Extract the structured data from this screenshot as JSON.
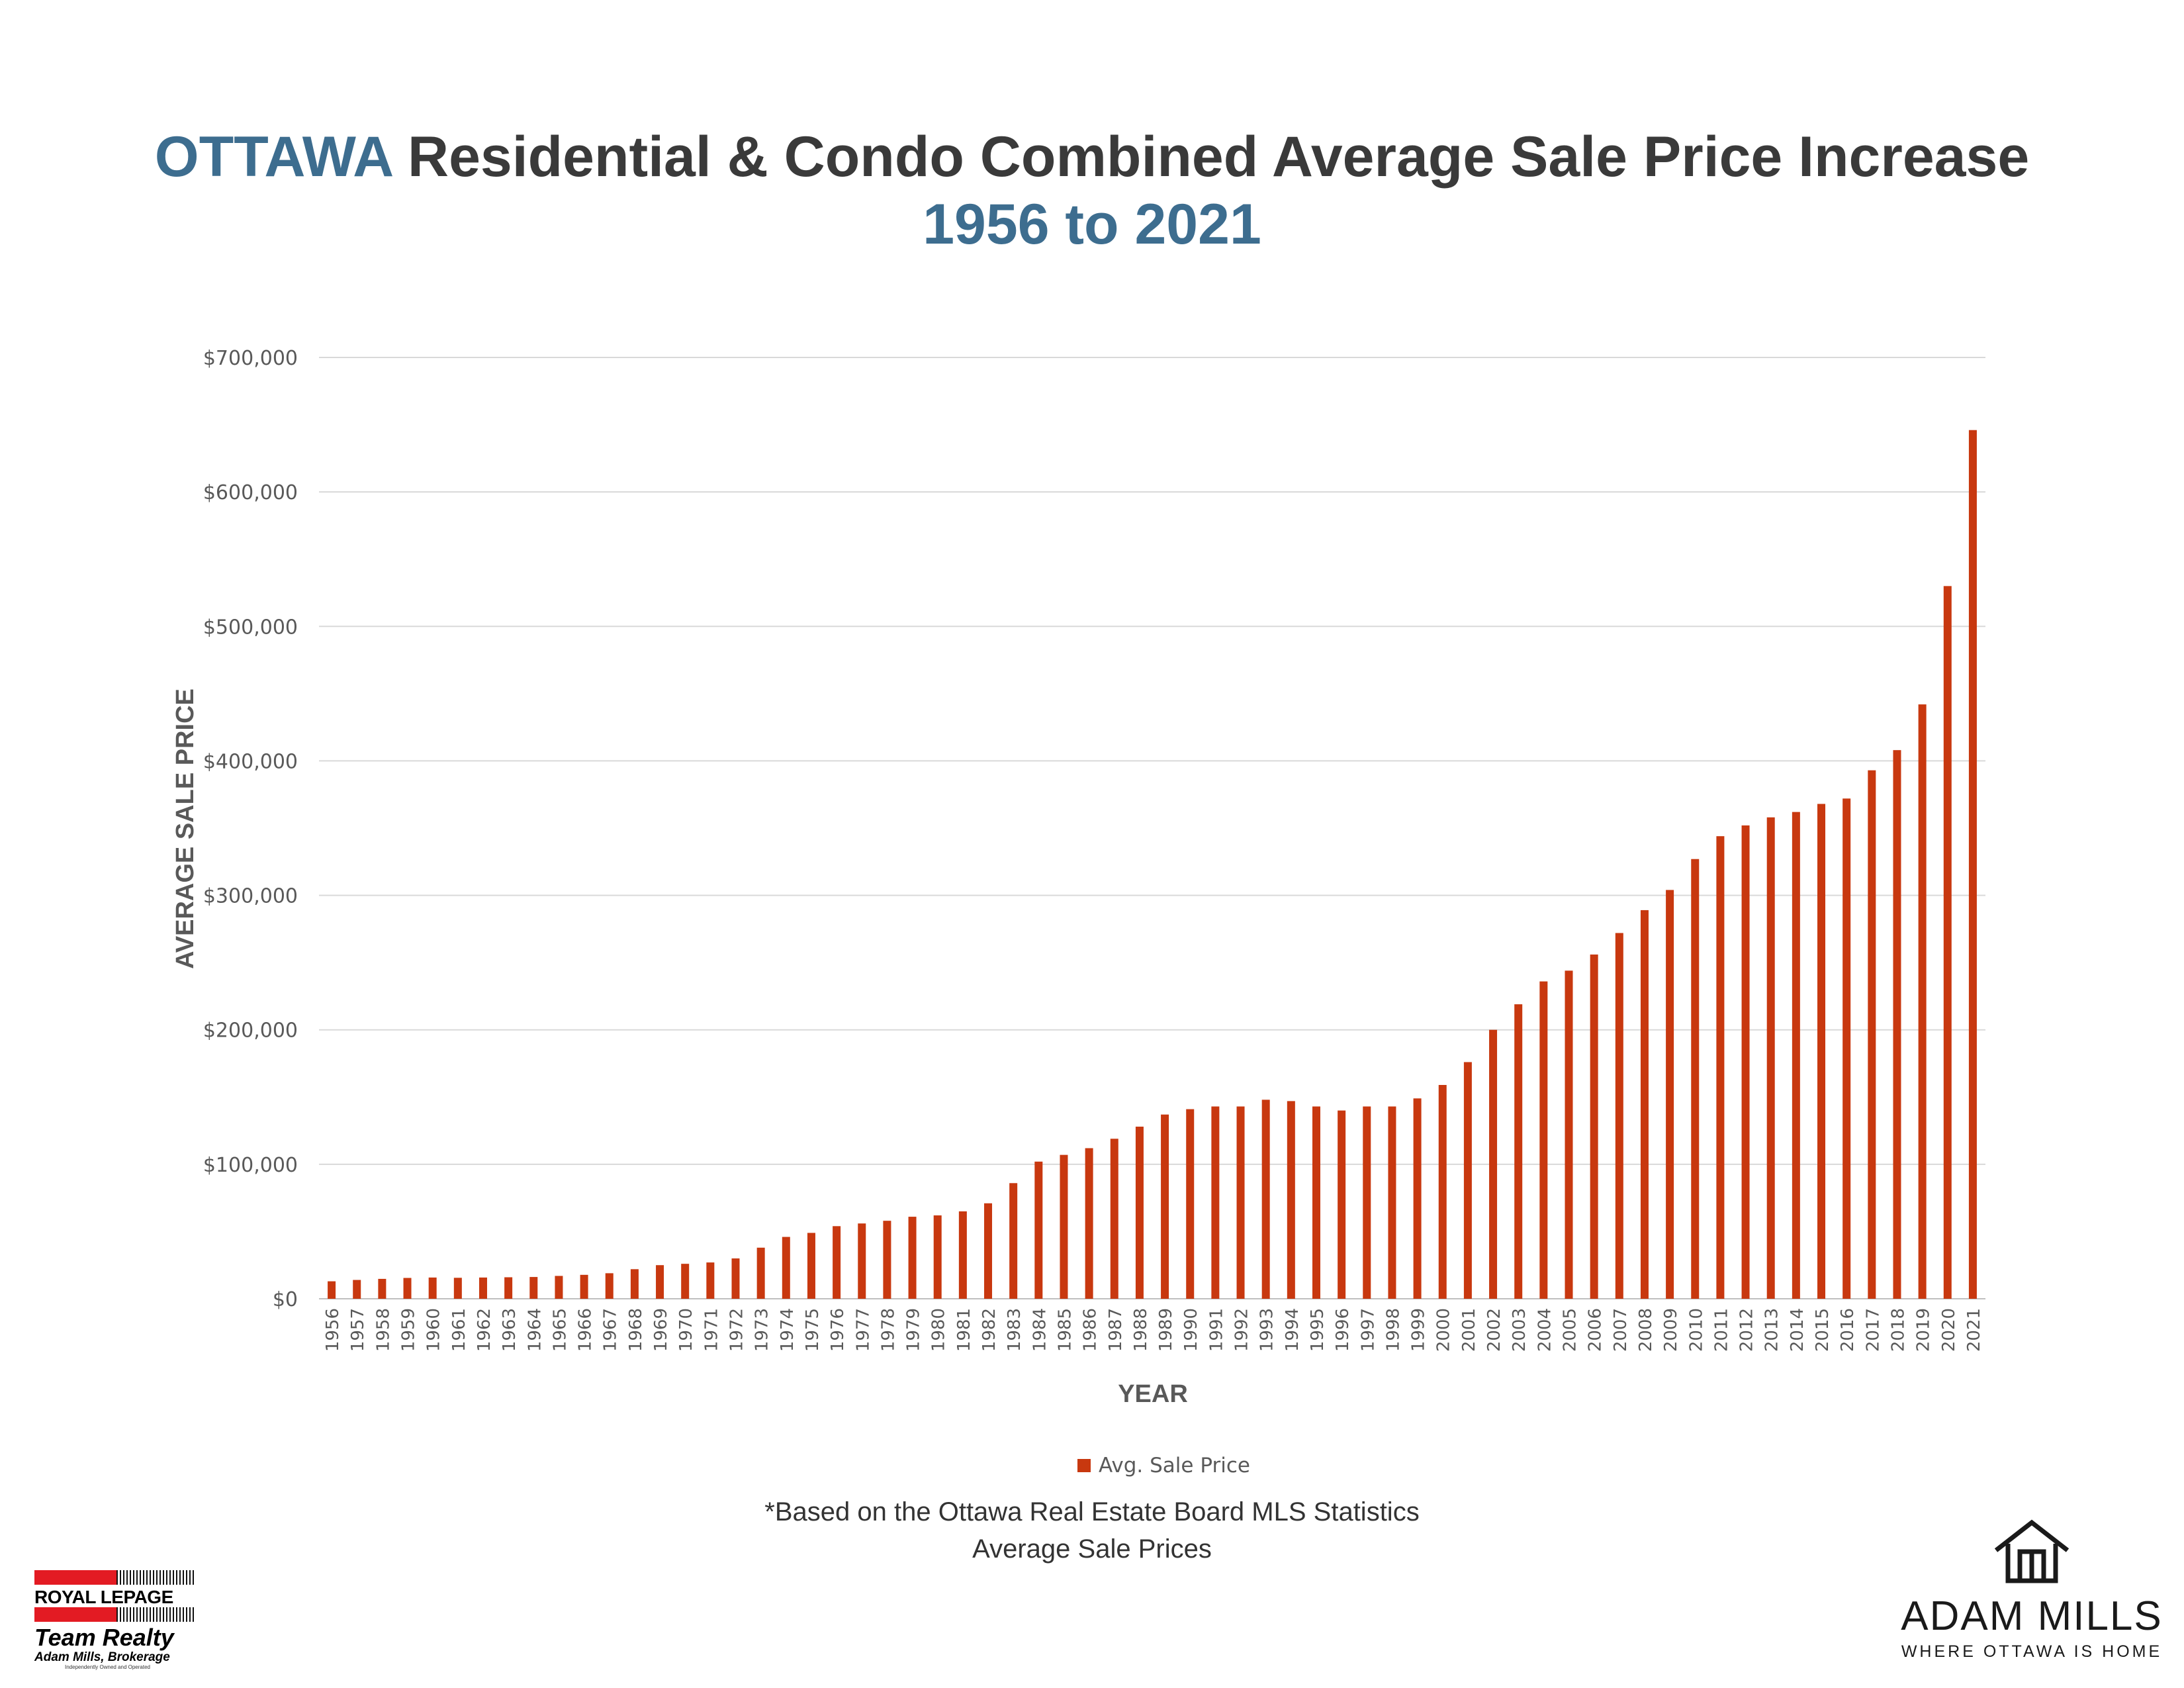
{
  "header": {
    "title_highlight": "OTTAWA",
    "title_rest": " Residential & Condo Combined Average Sale Price Increase",
    "subtitle": "1956 to 2021"
  },
  "chart_data": {
    "type": "bar",
    "xlabel": "YEAR",
    "ylabel": "AVERAGE SALE PRICE",
    "ylim": [
      0,
      700000
    ],
    "yticks": [
      0,
      100000,
      200000,
      300000,
      400000,
      500000,
      600000,
      700000
    ],
    "ytick_labels": [
      "$0",
      "$100,000",
      "$200,000",
      "$300,000",
      "$400,000",
      "$500,000",
      "$600,000",
      "$700,000"
    ],
    "grid": true,
    "legend_position": "bottom",
    "bar_color": "#c8380f",
    "categories": [
      "1956",
      "1957",
      "1958",
      "1959",
      "1960",
      "1961",
      "1962",
      "1963",
      "1964",
      "1965",
      "1966",
      "1967",
      "1968",
      "1969",
      "1970",
      "1971",
      "1972",
      "1973",
      "1974",
      "1975",
      "1976",
      "1977",
      "1978",
      "1979",
      "1980",
      "1981",
      "1982",
      "1983",
      "1984",
      "1985",
      "1986",
      "1987",
      "1988",
      "1989",
      "1990",
      "1991",
      "1992",
      "1993",
      "1994",
      "1995",
      "1996",
      "1997",
      "1998",
      "1999",
      "2000",
      "2001",
      "2002",
      "2003",
      "2004",
      "2005",
      "2006",
      "2007",
      "2008",
      "2009",
      "2010",
      "2011",
      "2012",
      "2013",
      "2014",
      "2015",
      "2016",
      "2017",
      "2018",
      "2019",
      "2020",
      "2021"
    ],
    "series": [
      {
        "name": "Avg. Sale Price",
        "values": [
          13000,
          14000,
          14800,
          15500,
          15800,
          15600,
          15800,
          16000,
          16200,
          17000,
          17800,
          19000,
          22000,
          25000,
          26000,
          27000,
          30000,
          38000,
          46000,
          49000,
          54000,
          56000,
          58000,
          61000,
          62000,
          65000,
          71000,
          86000,
          102000,
          107000,
          112000,
          119000,
          128000,
          137000,
          141000,
          143000,
          143000,
          148000,
          147000,
          143000,
          140000,
          143000,
          143000,
          149000,
          159000,
          176000,
          200000,
          219000,
          236000,
          244000,
          256000,
          272000,
          289000,
          304000,
          327000,
          344000,
          352000,
          358000,
          362000,
          368000,
          372000,
          393000,
          408000,
          442000,
          530000,
          646000
        ]
      }
    ]
  },
  "footer": {
    "note_line1": "*Based on the Ottawa Real Estate Board MLS Statistics",
    "note_line2": "Average Sale Prices"
  },
  "logos": {
    "royal_lepage_brand": "ROYAL LEPAGE",
    "royal_lepage_team": "Team Realty",
    "royal_lepage_broker": "Adam Mills, Brokerage",
    "royal_lepage_fineprint": "Independently Owned and Operated",
    "adam_mills_name": "ADAM MILLS",
    "adam_mills_tagline": "WHERE OTTAWA IS HOME",
    "house_icon": "house-icon",
    "brand_red": "#e31b23"
  }
}
